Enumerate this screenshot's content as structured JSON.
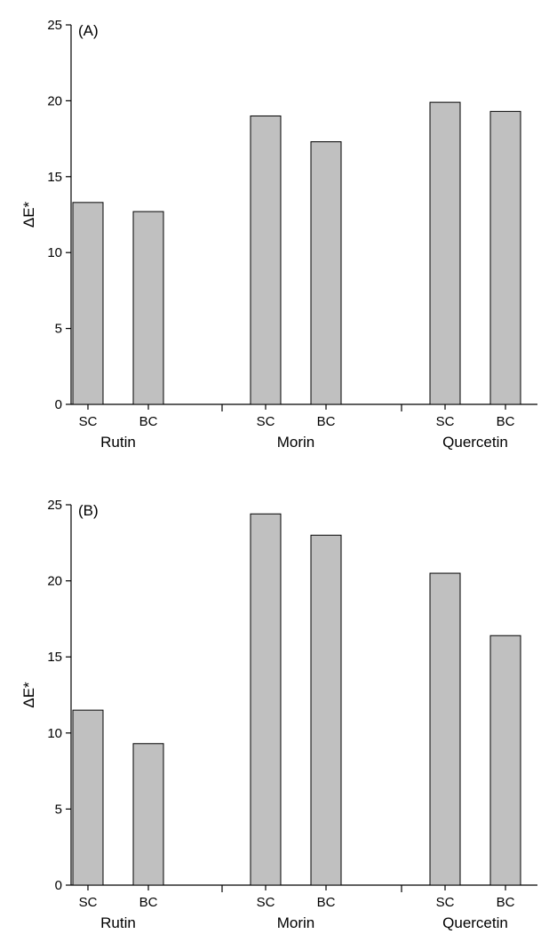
{
  "chart_data": [
    {
      "type": "bar",
      "panel_label": "(A)",
      "ylabel": "ΔE*",
      "ylim": [
        0,
        25
      ],
      "yticks": [
        0,
        5,
        10,
        15,
        20,
        25
      ],
      "groups": [
        {
          "name": "Rutin",
          "bars": [
            {
              "label": "SC",
              "value": 13.3
            },
            {
              "label": "BC",
              "value": 12.7
            }
          ]
        },
        {
          "name": "Morin",
          "bars": [
            {
              "label": "SC",
              "value": 19.0
            },
            {
              "label": "BC",
              "value": 17.3
            }
          ]
        },
        {
          "name": "Quercetin",
          "bars": [
            {
              "label": "SC",
              "value": 19.9
            },
            {
              "label": "BC",
              "value": 19.3
            }
          ]
        }
      ],
      "bar_color": "#c0c0c0",
      "grid": false,
      "legend": "none"
    },
    {
      "type": "bar",
      "panel_label": "(B)",
      "ylabel": "ΔE*",
      "ylim": [
        0,
        25
      ],
      "yticks": [
        0,
        5,
        10,
        15,
        20,
        25
      ],
      "groups": [
        {
          "name": "Rutin",
          "bars": [
            {
              "label": "SC",
              "value": 11.5
            },
            {
              "label": "BC",
              "value": 9.3
            }
          ]
        },
        {
          "name": "Morin",
          "bars": [
            {
              "label": "SC",
              "value": 24.4
            },
            {
              "label": "BC",
              "value": 23.0
            }
          ]
        },
        {
          "name": "Quercetin",
          "bars": [
            {
              "label": "SC",
              "value": 20.5
            },
            {
              "label": "BC",
              "value": 16.4
            }
          ]
        }
      ],
      "bar_color": "#c0c0c0",
      "grid": false,
      "legend": "none"
    }
  ]
}
